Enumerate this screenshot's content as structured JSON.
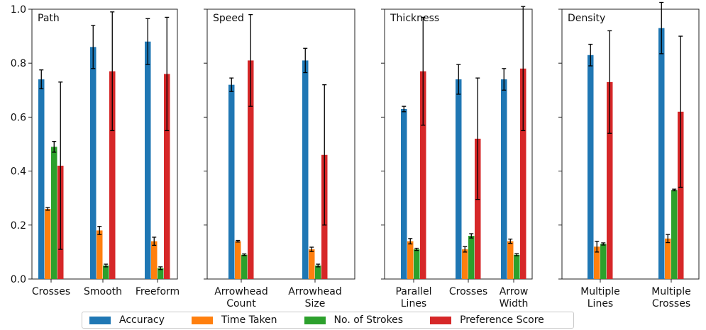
{
  "colors": {
    "accuracy": "#1f77b4",
    "time_taken": "#ff7f0e",
    "strokes": "#2ca02c",
    "preference": "#d62728",
    "error_bar": "#000000"
  },
  "legend": {
    "accuracy": "Accuracy",
    "time_taken": "Time Taken",
    "strokes": "No. of Strokes",
    "preference": "Preference Score"
  },
  "chart_data": [
    {
      "type": "bar",
      "title": "Path",
      "categories": [
        [
          "Crosses"
        ],
        [
          "Smooth"
        ],
        [
          "Freeform"
        ]
      ],
      "ylim": [
        0,
        1.0
      ],
      "yticks": [
        "0.0",
        "0.2",
        "0.4",
        "0.6",
        "0.8",
        "1.0"
      ],
      "series": [
        {
          "name": "Accuracy",
          "values": [
            0.74,
            0.86,
            0.88
          ],
          "errors": [
            0.035,
            0.08,
            0.085
          ]
        },
        {
          "name": "Time Taken",
          "values": [
            0.26,
            0.18,
            0.14
          ],
          "errors": [
            0.005,
            0.015,
            0.015
          ]
        },
        {
          "name": "No. of Strokes",
          "values": [
            0.49,
            0.05,
            0.04
          ],
          "errors": [
            0.02,
            0.005,
            0.005
          ]
        },
        {
          "name": "Preference Score",
          "values": [
            0.42,
            0.77,
            0.76
          ],
          "errors": [
            0.31,
            0.22,
            0.21
          ]
        }
      ]
    },
    {
      "type": "bar",
      "title": "Speed",
      "categories": [
        [
          "Arrowhead",
          "Count"
        ],
        [
          "Arrowhead",
          "Size"
        ]
      ],
      "ylim": [
        0,
        1.0
      ],
      "series": [
        {
          "name": "Accuracy",
          "values": [
            0.72,
            0.81
          ],
          "errors": [
            0.025,
            0.045
          ]
        },
        {
          "name": "Time Taken",
          "values": [
            0.14,
            0.11
          ],
          "errors": [
            0.003,
            0.008
          ]
        },
        {
          "name": "No. of Strokes",
          "values": [
            0.09,
            0.05
          ],
          "errors": [
            0.003,
            0.005
          ]
        },
        {
          "name": "Preference Score",
          "values": [
            0.81,
            0.46
          ],
          "errors": [
            0.17,
            0.26
          ]
        }
      ]
    },
    {
      "type": "bar",
      "title": "Thickness",
      "categories": [
        [
          "Parallel",
          "Lines"
        ],
        [
          "Crosses"
        ],
        [
          "Arrow",
          "Width"
        ]
      ],
      "ylim": [
        0,
        1.0
      ],
      "series": [
        {
          "name": "Accuracy",
          "values": [
            0.63,
            0.74,
            0.74
          ],
          "errors": [
            0.01,
            0.055,
            0.04
          ]
        },
        {
          "name": "Time Taken",
          "values": [
            0.14,
            0.11,
            0.14
          ],
          "errors": [
            0.01,
            0.01,
            0.008
          ]
        },
        {
          "name": "No. of Strokes",
          "values": [
            0.11,
            0.16,
            0.09
          ],
          "errors": [
            0.004,
            0.008,
            0.004
          ]
        },
        {
          "name": "Preference Score",
          "values": [
            0.77,
            0.52,
            0.78
          ],
          "errors": [
            0.2,
            0.225,
            0.23
          ]
        }
      ]
    },
    {
      "type": "bar",
      "title": "Density",
      "categories": [
        [
          "Multiple",
          "Lines"
        ],
        [
          "Multiple",
          "Crosses"
        ]
      ],
      "ylim": [
        0,
        1.0
      ],
      "series": [
        {
          "name": "Accuracy",
          "values": [
            0.83,
            0.93
          ],
          "errors": [
            0.04,
            0.095
          ]
        },
        {
          "name": "Time Taken",
          "values": [
            0.12,
            0.15
          ],
          "errors": [
            0.02,
            0.015
          ]
        },
        {
          "name": "No. of Strokes",
          "values": [
            0.13,
            0.33
          ],
          "errors": [
            0.004,
            0.003
          ]
        },
        {
          "name": "Preference Score",
          "values": [
            0.73,
            0.62
          ],
          "errors": [
            0.19,
            0.28
          ]
        }
      ]
    }
  ]
}
